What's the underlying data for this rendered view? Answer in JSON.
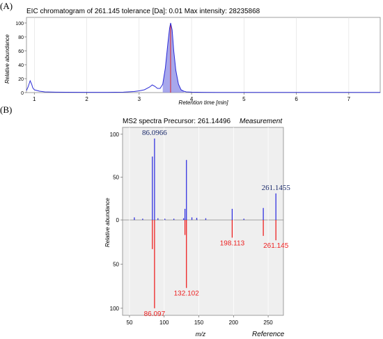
{
  "panel_a": {
    "letter": "(A)",
    "chart_data": {
      "type": "line",
      "title": "EIC chromatogram of 261.145 tolerance [Da]: 0.01  Max intensity: 28235868",
      "xlabel": "Retention time [min]",
      "ylabel": "Relative abundance",
      "xlim": [
        0.85,
        7.6
      ],
      "ylim": [
        0,
        108
      ],
      "x_ticks": [
        1,
        2,
        3,
        4,
        5,
        6,
        7
      ],
      "y_ticks": [
        0,
        20,
        40,
        60,
        80,
        100
      ],
      "grid": "vertical",
      "series": [
        {
          "color": "#2b2bd6",
          "x": [
            0.85,
            0.88,
            0.92,
            0.95,
            0.97,
            1.0,
            1.05,
            1.1,
            1.2,
            1.4,
            1.6,
            2.0,
            2.4,
            2.7,
            2.9,
            3.0,
            3.1,
            3.2,
            3.25,
            3.3,
            3.35,
            3.4,
            3.45,
            3.5,
            3.55,
            3.58,
            3.6,
            3.63,
            3.66,
            3.7,
            3.75,
            3.8,
            3.85,
            3.9,
            4.0,
            4.2,
            4.5,
            5.0,
            6.0,
            7.0,
            7.6
          ],
          "y": [
            3,
            8,
            17,
            12,
            7,
            4,
            3,
            2,
            1,
            0.6,
            0.5,
            0.4,
            0.4,
            0.6,
            1.5,
            2.5,
            4,
            8,
            11,
            9,
            6,
            6,
            12,
            35,
            72,
            92,
            100,
            90,
            60,
            32,
            12,
            4,
            2,
            1,
            0.6,
            0.4,
            0.3,
            0.2,
            0.2,
            0.2,
            0.2
          ]
        }
      ]
    }
  },
  "panel_b": {
    "letter": "(B)",
    "chart_data": {
      "type": "bar",
      "title": "MS2 spectra Precursor: 261.14496",
      "top_label": "Measurement",
      "bottom_label": "Reference",
      "xlabel": "m/z",
      "ylabel": "Relative abundance",
      "xlim": [
        40,
        272
      ],
      "ylim_top": [
        0,
        108
      ],
      "ylim_bottom": [
        0,
        108
      ],
      "x_ticks": [
        50,
        100,
        150,
        200,
        250
      ],
      "y_ticks_top": [
        0,
        50,
        100
      ],
      "y_ticks_bottom": [
        50,
        100
      ],
      "top_color": "#3333e0",
      "bottom_color": "#ee2222",
      "measurement": [
        {
          "mz": 57,
          "value": 3
        },
        {
          "mz": 69,
          "value": 1.5
        },
        {
          "mz": 83,
          "value": 74
        },
        {
          "mz": 86.0966,
          "value": 95,
          "label": "86.0966"
        },
        {
          "mz": 91,
          "value": 2
        },
        {
          "mz": 101,
          "value": 1.5
        },
        {
          "mz": 114,
          "value": 1.5
        },
        {
          "mz": 128,
          "value": 2
        },
        {
          "mz": 130,
          "value": 13
        },
        {
          "mz": 132.102,
          "value": 70
        },
        {
          "mz": 140,
          "value": 3
        },
        {
          "mz": 147,
          "value": 2.5
        },
        {
          "mz": 160,
          "value": 2
        },
        {
          "mz": 198.113,
          "value": 13
        },
        {
          "mz": 215,
          "value": 1.5
        },
        {
          "mz": 243,
          "value": 14
        },
        {
          "mz": 261.1455,
          "value": 31,
          "label": "261.1455"
        }
      ],
      "reference": [
        {
          "mz": 83,
          "value": 33
        },
        {
          "mz": 86.097,
          "value": 100,
          "label": "86.097"
        },
        {
          "mz": 130,
          "value": 17
        },
        {
          "mz": 132.102,
          "value": 77,
          "label": "132.102"
        },
        {
          "mz": 198.113,
          "value": 20,
          "label": "198.113"
        },
        {
          "mz": 243,
          "value": 18
        },
        {
          "mz": 261.145,
          "value": 23,
          "label": "261.145"
        }
      ]
    }
  }
}
